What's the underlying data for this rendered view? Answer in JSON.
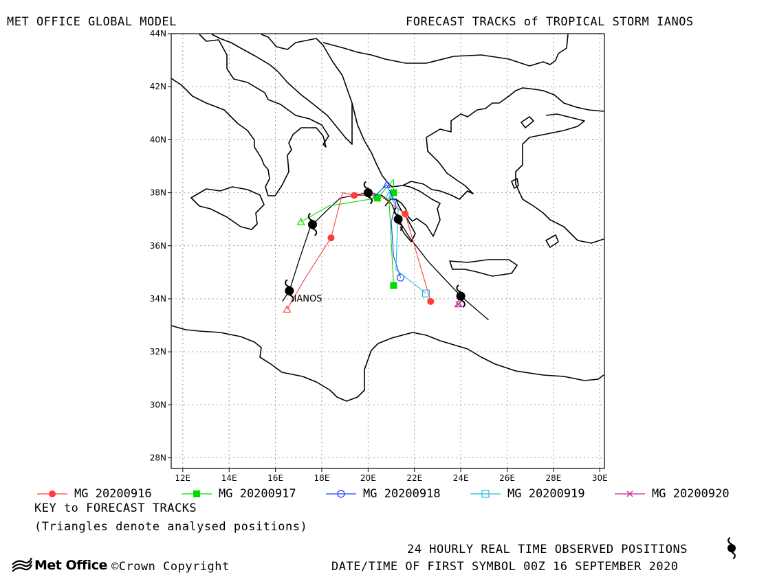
{
  "header": {
    "left_title": "MET OFFICE GLOBAL MODEL",
    "right_title": "FORECAST TRACKS of TROPICAL STORM IANOS"
  },
  "map": {
    "lon_range": [
      11.5,
      30.2
    ],
    "lat_range": [
      27.6,
      44.0
    ],
    "grid": true,
    "x_ticks": [
      "12E",
      "14E",
      "16E",
      "18E",
      "20E",
      "22E",
      "24E",
      "26E",
      "28E",
      "30E"
    ],
    "y_ticks": [
      "28N",
      "30N",
      "32N",
      "34N",
      "36N",
      "38N",
      "40N",
      "42N",
      "44N"
    ],
    "storm_label": "IANOS",
    "storm_label_pos": [
      16.8,
      34.0
    ],
    "observed_positions": [
      [
        16.6,
        34.3
      ],
      [
        17.6,
        36.8
      ],
      [
        20.0,
        38.0
      ],
      [
        21.3,
        37.0
      ],
      [
        24.0,
        34.1
      ]
    ],
    "observed_track": [
      [
        16.3,
        33.9
      ],
      [
        16.6,
        34.3
      ],
      [
        17.0,
        35.4
      ],
      [
        17.5,
        36.7
      ],
      [
        17.6,
        36.8
      ],
      [
        18.3,
        37.4
      ],
      [
        18.8,
        37.8
      ],
      [
        20.0,
        38.0
      ],
      [
        20.6,
        37.9
      ],
      [
        21.0,
        37.6
      ],
      [
        21.3,
        37.0
      ],
      [
        21.8,
        36.3
      ],
      [
        22.6,
        35.4
      ],
      [
        24.0,
        34.1
      ],
      [
        25.2,
        33.2
      ]
    ],
    "tracks": [
      {
        "name": "MG 20200916",
        "color": "#ff3b3b",
        "marker": "filled-circle",
        "points": [
          [
            16.5,
            33.6
          ],
          [
            17.3,
            34.8
          ],
          [
            18.4,
            36.3
          ],
          [
            18.9,
            38.0
          ],
          [
            19.4,
            37.9
          ],
          [
            20.5,
            37.9
          ],
          [
            21.6,
            37.2
          ],
          [
            22.7,
            33.9
          ]
        ],
        "marker_points": [
          [
            18.4,
            36.3
          ],
          [
            19.4,
            37.9
          ],
          [
            21.6,
            37.2
          ],
          [
            22.7,
            33.9
          ]
        ]
      },
      {
        "name": "MG 20200917",
        "color": "#00dd00",
        "marker": "filled-square",
        "points": [
          [
            17.1,
            36.9
          ],
          [
            18.3,
            37.5
          ],
          [
            20.4,
            37.8
          ],
          [
            21.1,
            38.5
          ],
          [
            21.1,
            38.0
          ],
          [
            20.9,
            37.8
          ],
          [
            21.1,
            34.5
          ]
        ],
        "marker_points": [
          [
            20.4,
            37.8
          ],
          [
            21.1,
            38.0
          ],
          [
            21.1,
            34.5
          ]
        ]
      },
      {
        "name": "MG 20200918",
        "color": "#1f3cff",
        "marker": "open-circle",
        "points": [
          [
            20.2,
            37.8
          ],
          [
            20.8,
            38.3
          ],
          [
            21.2,
            37.6
          ],
          [
            21.0,
            36.9
          ],
          [
            21.1,
            35.6
          ],
          [
            21.4,
            34.8
          ]
        ],
        "marker_points": [
          [
            21.4,
            34.8
          ]
        ]
      },
      {
        "name": "MG 20200919",
        "color": "#22bbdd",
        "marker": "open-square",
        "points": [
          [
            20.9,
            37.9
          ],
          [
            21.3,
            37.4
          ],
          [
            21.2,
            35.1
          ],
          [
            22.5,
            34.2
          ]
        ],
        "marker_points": [
          [
            22.5,
            34.2
          ]
        ]
      },
      {
        "name": "MG 20200920",
        "color": "#cc2299",
        "marker": "cross",
        "points": [
          [
            23.9,
            33.8
          ]
        ],
        "marker_points": [
          [
            23.9,
            33.8
          ]
        ]
      }
    ],
    "analysed_triangles": [
      {
        "color": "#ff3b3b",
        "pos": [
          16.5,
          33.6
        ]
      },
      {
        "color": "#00dd00",
        "pos": [
          17.1,
          36.9
        ]
      },
      {
        "color": "#1f3cff",
        "pos": [
          20.8,
          38.3
        ]
      },
      {
        "color": "#22bbdd",
        "pos": [
          20.9,
          37.9
        ]
      },
      {
        "color": "#cc2299",
        "pos": [
          23.9,
          33.8
        ]
      }
    ]
  },
  "legend": {
    "entries": [
      "MG 20200916",
      "MG 20200917",
      "MG 20200918",
      "MG 20200919",
      "MG 20200920"
    ]
  },
  "footer": {
    "key_title": "KEY to FORECAST TRACKS",
    "key_note": "(Triangles denote analysed positions)",
    "logo_text": "Met Office",
    "copyright": "©Crown Copyright",
    "observed_note": "24 HOURLY REAL TIME OBSERVED POSITIONS",
    "first_symbol": "DATE/TIME OF FIRST SYMBOL 00Z 16 SEPTEMBER 2020"
  }
}
